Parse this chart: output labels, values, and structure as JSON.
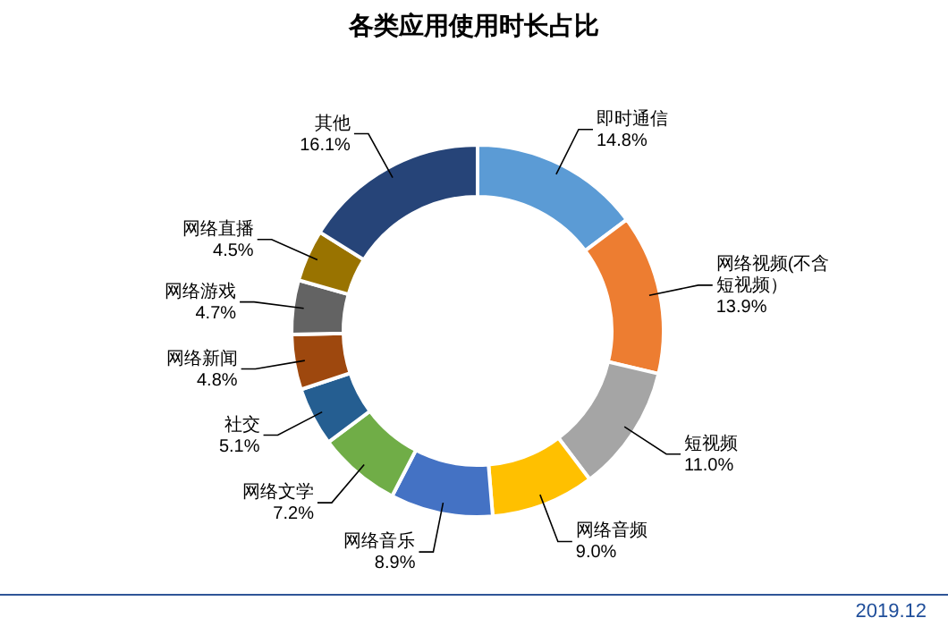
{
  "chart_data": {
    "type": "donut",
    "title": "各类应用使用时长占比",
    "categories": [
      "即时通信",
      "网络视频(不含短视频）",
      "短视频",
      "网络音频",
      "网络音乐",
      "网络文学",
      "社交",
      "网络新闻",
      "网络游戏",
      "网络直播",
      "其他"
    ],
    "values": [
      14.8,
      13.9,
      11.0,
      9.0,
      8.9,
      7.2,
      5.1,
      4.8,
      4.7,
      4.5,
      16.1
    ],
    "value_labels": [
      "14.8%",
      "13.9%",
      "11.0%",
      "9.0%",
      "8.9%",
      "7.2%",
      "5.1%",
      "4.8%",
      "4.7%",
      "4.5%",
      "16.1%"
    ],
    "colors": [
      "#5b9bd5",
      "#ed7d31",
      "#a5a5a5",
      "#ffc000",
      "#4472c4",
      "#70ad47",
      "#255e91",
      "#9e480e",
      "#636363",
      "#997300",
      "#264478"
    ],
    "annotations": [
      "2019.12"
    ]
  }
}
